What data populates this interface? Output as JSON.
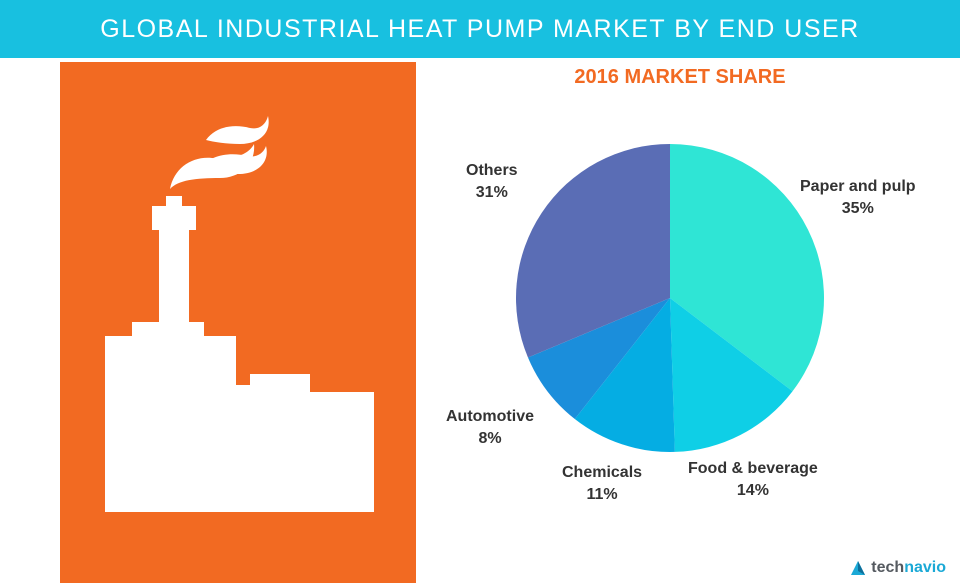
{
  "header": {
    "title": "GLOBAL INDUSTRIAL HEAT PUMP MARKET BY END USER"
  },
  "chart_data": {
    "type": "pie",
    "title": "2016 MARKET SHARE",
    "slices": [
      {
        "label": "Paper and pulp",
        "value": 35,
        "display": "35%",
        "color": "#2fe5d5"
      },
      {
        "label": "Food & beverage",
        "value": 14,
        "display": "14%",
        "color": "#0fcfe6"
      },
      {
        "label": "Chemicals",
        "value": 11,
        "display": "11%",
        "color": "#05ade3"
      },
      {
        "label": "Automotive",
        "value": 8,
        "display": "8%",
        "color": "#1b8edb"
      },
      {
        "label": "Others",
        "value": 31,
        "display": "31%",
        "color": "#5a6db5"
      }
    ]
  },
  "brand": {
    "name": "technavio",
    "colors": {
      "tech": "#555a60",
      "navio": "#1ba9d6"
    }
  },
  "illustration": {
    "name": "factory-with-smoke",
    "color": "#f26a22"
  }
}
